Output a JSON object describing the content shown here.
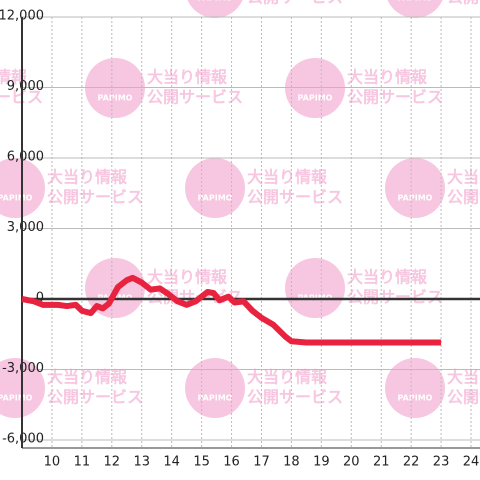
{
  "chart_data": {
    "type": "line",
    "x": [
      9.0,
      9.4,
      9.7,
      10.2,
      10.5,
      10.8,
      11.0,
      11.3,
      11.5,
      11.7,
      11.9,
      12.2,
      12.5,
      12.7,
      13.0,
      13.3,
      13.6,
      13.9,
      14.2,
      14.5,
      14.8,
      15.0,
      15.2,
      15.4,
      15.6,
      15.9,
      16.1,
      16.4,
      16.7,
      17.0,
      17.4,
      17.8,
      18.0,
      18.5,
      23.0
    ],
    "series": [
      {
        "color": "#e8233f",
        "values": [
          0,
          -100,
          -250,
          -250,
          -300,
          -250,
          -500,
          -600,
          -300,
          -400,
          -200,
          500,
          800,
          900,
          700,
          400,
          450,
          200,
          -100,
          -250,
          -100,
          100,
          300,
          250,
          -50,
          100,
          -150,
          -100,
          -500,
          -800,
          -1100,
          -1600,
          -1800,
          -1850,
          -1850
        ]
      }
    ],
    "xlim": [
      9,
      24.3
    ],
    "xticks": [
      10,
      11,
      12,
      13,
      14,
      15,
      16,
      17,
      18,
      19,
      20,
      21,
      22,
      23,
      24
    ],
    "ylim": [
      -6000,
      12000
    ],
    "yticks": [
      {
        "value": -6000,
        "label": "-6,000"
      },
      {
        "value": -3000,
        "label": "-3,000"
      },
      0,
      {
        "value": 3000,
        "label": "3,000"
      },
      {
        "value": 6000,
        "label": "6,000"
      },
      {
        "value": 9000,
        "label": "9,000"
      },
      {
        "value": 12000,
        "label": "12,000"
      }
    ],
    "grid": true
  },
  "watermark": {
    "line1": "大当り情報",
    "line2": "公開サービス",
    "logo": "PAPIMO"
  }
}
